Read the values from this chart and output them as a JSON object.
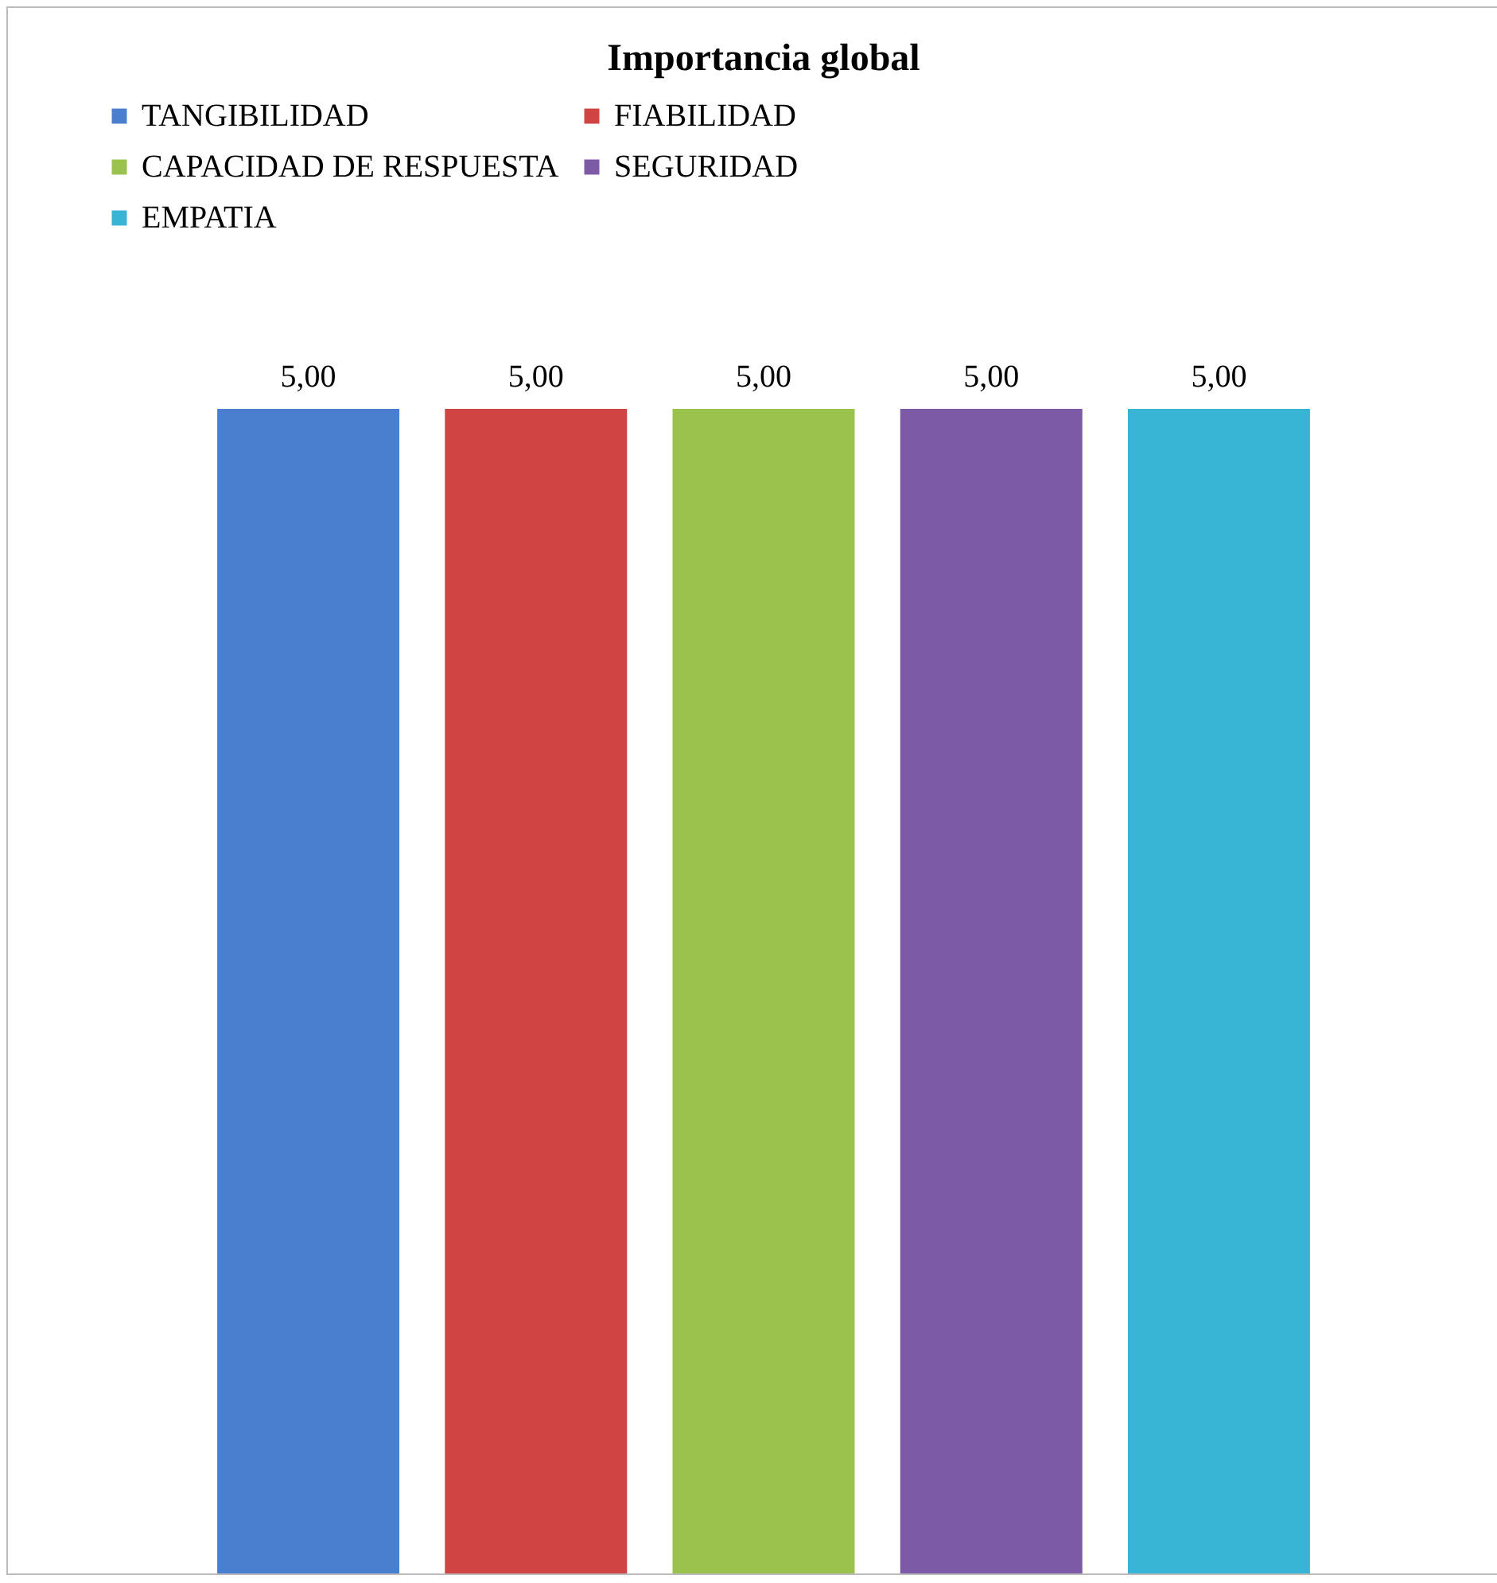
{
  "chart_data": {
    "type": "bar",
    "title": "Importancia global",
    "categories": [
      null
    ],
    "series": [
      {
        "name": "TANGIBILIDAD",
        "color": "#4a7fcf",
        "values": [
          5
        ],
        "value_labels": [
          "5,00"
        ]
      },
      {
        "name": "FIABILIDAD",
        "color": "#d04443",
        "values": [
          5
        ],
        "value_labels": [
          "5,00"
        ]
      },
      {
        "name": "CAPACIDAD DE RESPUESTA",
        "color": "#9cc24e",
        "values": [
          5
        ],
        "value_labels": [
          "5,00"
        ]
      },
      {
        "name": "SEGURIDAD",
        "color": "#7d5aa6",
        "values": [
          5
        ],
        "value_labels": [
          "5,00"
        ]
      },
      {
        "name": "EMPATIA",
        "color": "#38b4d4",
        "values": [
          5
        ],
        "value_labels": [
          "5,00"
        ]
      }
    ],
    "tick_labels": false,
    "legend": "top"
  }
}
